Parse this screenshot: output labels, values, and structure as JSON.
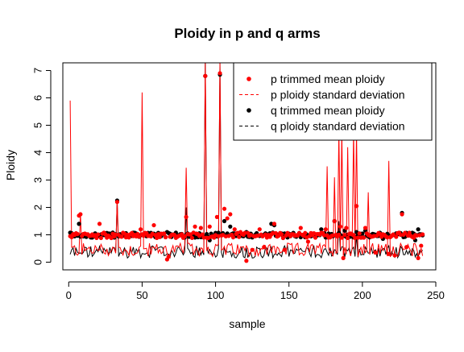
{
  "chart_data": {
    "type": "line",
    "title": "Ploidy in p and q arms",
    "xlabel": "sample",
    "ylabel": "Ploidy",
    "xlim": [
      -4,
      250
    ],
    "ylim": [
      -0.28,
      7.28
    ],
    "x_ticks": [
      0,
      50,
      100,
      150,
      200,
      250
    ],
    "y_ticks": [
      0,
      1,
      2,
      3,
      4,
      5,
      6,
      7
    ],
    "grid": false,
    "legend_position": "top-right",
    "colors": {
      "p": "#ff0000",
      "q": "#000000"
    },
    "legend": [
      {
        "label": "p trimmed mean ploidy",
        "style": "point",
        "color": "#ff0000"
      },
      {
        "label": "p ploidy standard deviation",
        "style": "dashed-line",
        "color": "#ff0000"
      },
      {
        "label": "q trimmed mean ploidy",
        "style": "point",
        "color": "#000000"
      },
      {
        "label": "q ploidy standard deviation",
        "style": "dashed-line",
        "color": "#000000"
      }
    ],
    "n_samples": 241,
    "p_spikes": [
      [
        1,
        5.9
      ],
      [
        8,
        1.8
      ],
      [
        33,
        2.25
      ],
      [
        50,
        6.2
      ],
      [
        80,
        3.45
      ],
      [
        93,
        7.3
      ],
      [
        103,
        7.3
      ],
      [
        176,
        3.5
      ],
      [
        181,
        3.1
      ],
      [
        184,
        4.8
      ],
      [
        186,
        4.8
      ],
      [
        190,
        4.2
      ],
      [
        194,
        4.8
      ],
      [
        196,
        4.8
      ],
      [
        204,
        2.55
      ],
      [
        218,
        3.7
      ]
    ],
    "q_spikes": [
      [
        33,
        2.25
      ],
      [
        80,
        2.0
      ],
      [
        93,
        7.3
      ],
      [
        103,
        7.3
      ],
      [
        184,
        1.5
      ],
      [
        196,
        1.0
      ],
      [
        218,
        0.6
      ]
    ],
    "p_mean_overrides": [
      [
        1,
        0.95
      ],
      [
        7,
        1.7
      ],
      [
        8,
        1.75
      ],
      [
        21,
        1.4
      ],
      [
        33,
        2.2
      ],
      [
        49,
        1.2
      ],
      [
        58,
        1.35
      ],
      [
        67,
        0.1
      ],
      [
        68,
        0.2
      ],
      [
        80,
        1.65
      ],
      [
        86,
        1.3
      ],
      [
        90,
        1.25
      ],
      [
        93,
        6.8
      ],
      [
        96,
        1.3
      ],
      [
        101,
        1.65
      ],
      [
        103,
        6.9
      ],
      [
        106,
        1.95
      ],
      [
        108,
        1.6
      ],
      [
        110,
        1.75
      ],
      [
        113,
        1.2
      ],
      [
        117,
        1.1
      ],
      [
        121,
        0.05
      ],
      [
        125,
        0.45
      ],
      [
        130,
        1.2
      ],
      [
        133,
        0.55
      ],
      [
        140,
        1.4
      ],
      [
        147,
        0.45
      ],
      [
        158,
        1.25
      ],
      [
        163,
        0.75
      ],
      [
        175,
        1.2
      ],
      [
        181,
        1.5
      ],
      [
        185,
        1.3
      ],
      [
        187,
        0.15
      ],
      [
        189,
        1.25
      ],
      [
        196,
        2.05
      ],
      [
        202,
        1.25
      ],
      [
        209,
        0.35
      ],
      [
        218,
        0.3
      ],
      [
        222,
        0.25
      ],
      [
        227,
        1.75
      ],
      [
        230,
        0.55
      ],
      [
        238,
        0.15
      ],
      [
        240,
        0.6
      ]
    ],
    "q_mean_overrides": [
      [
        7,
        1.4
      ],
      [
        33,
        2.25
      ],
      [
        67,
        1.1
      ],
      [
        86,
        0.9
      ],
      [
        93,
        6.8
      ],
      [
        96,
        0.8
      ],
      [
        103,
        6.85
      ],
      [
        106,
        1.5
      ],
      [
        110,
        1.3
      ],
      [
        121,
        1.1
      ],
      [
        127,
        1.0
      ],
      [
        138,
        1.4
      ],
      [
        140,
        1.35
      ],
      [
        154,
        0.95
      ],
      [
        172,
        1.2
      ],
      [
        181,
        1.5
      ],
      [
        188,
        1.15
      ],
      [
        196,
        1.1
      ],
      [
        202,
        1.15
      ],
      [
        209,
        1.0
      ],
      [
        214,
        0.85
      ],
      [
        227,
        1.8
      ],
      [
        236,
        0.8
      ],
      [
        238,
        1.2
      ]
    ]
  }
}
